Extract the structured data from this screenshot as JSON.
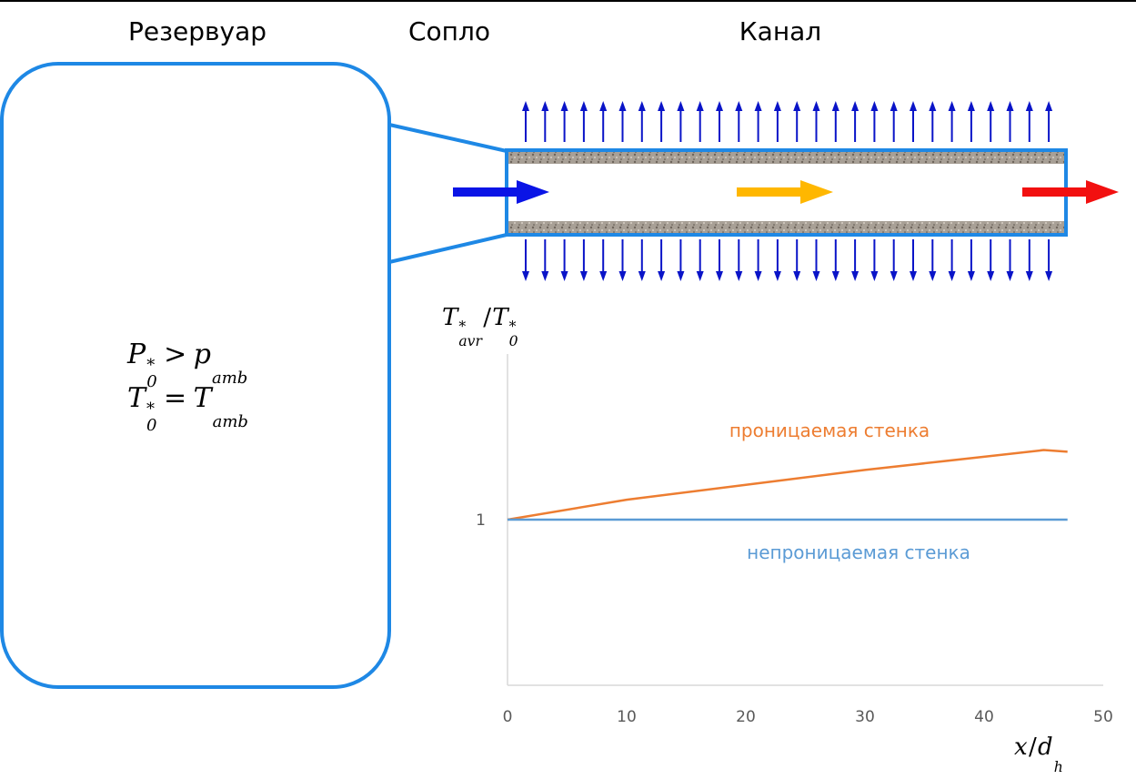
{
  "titles": {
    "reservoir": "Резервуар",
    "nozzle": "Сопло",
    "channel": "Канал"
  },
  "reservoir_conditions": [
    [
      {
        "t": "P",
        "sup": "*",
        "sub": "0"
      },
      {
        "t": ">"
      },
      {
        "t": "p",
        "sub": "amb"
      }
    ],
    [
      {
        "t": "T",
        "sup": "*",
        "sub": "0"
      },
      {
        "t": "="
      },
      {
        "t": "T",
        "sub": "amb"
      }
    ]
  ],
  "chart_data": {
    "type": "line",
    "y_label": [
      {
        "t": "T",
        "sup": "*",
        "sub": "avr"
      },
      {
        "t": "/"
      },
      {
        "t": "T",
        "sup": "*",
        "sub": "0"
      }
    ],
    "x_label": [
      {
        "t": "x"
      },
      {
        "t": "/"
      },
      {
        "t": "d",
        "sub": "h"
      }
    ],
    "x": [
      0,
      10,
      20,
      30,
      40,
      45,
      47
    ],
    "series": [
      {
        "name": "проницаемая стенка",
        "color": "#ed7d31",
        "values": [
          1,
          1.12,
          1.21,
          1.3,
          1.38,
          1.42,
          1.41
        ]
      },
      {
        "name": "непроницаемая стенка",
        "color": "#5b9bd5",
        "values": [
          1,
          1,
          1,
          1,
          1,
          1,
          1
        ]
      }
    ],
    "xlim": [
      0,
      50
    ],
    "ylim": [
      0,
      2
    ],
    "xticks": [
      0,
      10,
      20,
      30,
      40,
      50
    ],
    "yticks": [
      1
    ],
    "grid": false
  }
}
